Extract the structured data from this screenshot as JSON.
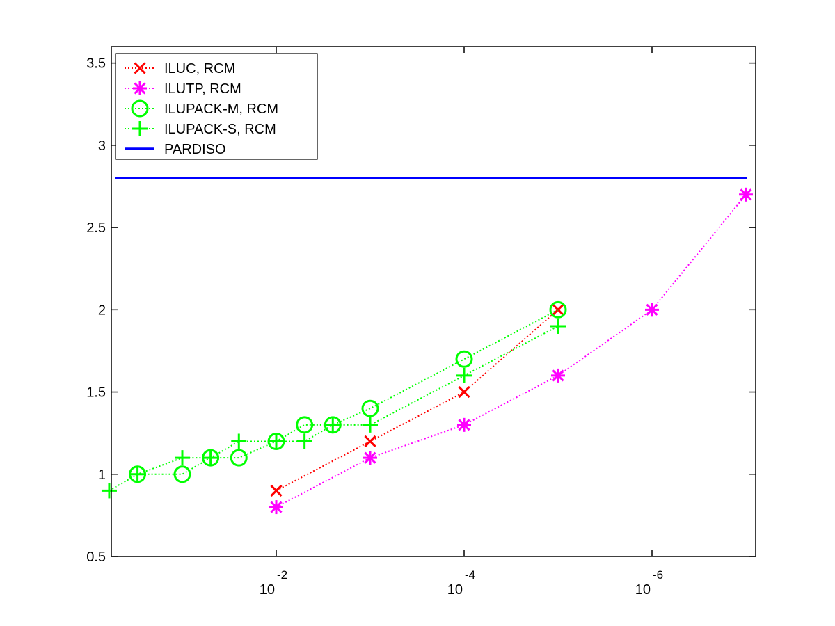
{
  "chart_data": {
    "type": "line",
    "title": "",
    "xlabel": "",
    "ylabel": "",
    "x_scale": "log",
    "x_reversed": true,
    "xlim": [
      0.75,
      1.2e-07
    ],
    "ylim": [
      0.5,
      3.6
    ],
    "grid": false,
    "legend_position": "top-left",
    "y_ticks": [
      {
        "value": 0.5,
        "label": "0.5"
      },
      {
        "value": 1,
        "label": "1"
      },
      {
        "value": 1.5,
        "label": "1.5"
      },
      {
        "value": 2,
        "label": "2"
      },
      {
        "value": 2.5,
        "label": "2.5"
      },
      {
        "value": 3,
        "label": "3"
      },
      {
        "value": 3.5,
        "label": "3.5"
      }
    ],
    "x_ticks": [
      {
        "value": 0.01,
        "base": "10",
        "exponent": "-2"
      },
      {
        "value": 0.0001,
        "base": "10",
        "exponent": "-4"
      },
      {
        "value": 1e-06,
        "base": "10",
        "exponent": "-6"
      }
    ],
    "series": [
      {
        "name": "ILUC, RCM",
        "color": "#ff0000",
        "marker": "x",
        "line": "dotted",
        "points": [
          [
            0.01,
            0.9
          ],
          [
            0.001,
            1.2
          ],
          [
            0.0001,
            1.5
          ],
          [
            1e-05,
            2.0
          ]
        ]
      },
      {
        "name": "ILUTP, RCM",
        "color": "#ff00ff",
        "marker": "asterisk",
        "line": "dotted",
        "points": [
          [
            0.01,
            0.8
          ],
          [
            0.001,
            1.1
          ],
          [
            0.0001,
            1.3
          ],
          [
            1e-05,
            1.6
          ],
          [
            1e-06,
            2.0
          ],
          [
            1e-07,
            2.7
          ]
        ]
      },
      {
        "name": "ILUPACK-M, RCM",
        "color": "#00ff00",
        "marker": "circle",
        "line": "dotted",
        "points": [
          [
            0.3,
            1.0
          ],
          [
            0.1,
            1.0
          ],
          [
            0.05,
            1.1
          ],
          [
            0.025,
            1.1
          ],
          [
            0.01,
            1.2
          ],
          [
            0.005,
            1.3
          ],
          [
            0.0025,
            1.3
          ],
          [
            0.001,
            1.4
          ],
          [
            0.0001,
            1.7
          ],
          [
            1e-05,
            2.0
          ]
        ]
      },
      {
        "name": "ILUPACK-S, RCM",
        "color": "#00ff00",
        "marker": "plus",
        "line": "dotted",
        "points": [
          [
            0.6,
            0.9
          ],
          [
            0.3,
            1.0
          ],
          [
            0.1,
            1.1
          ],
          [
            0.05,
            1.1
          ],
          [
            0.025,
            1.2
          ],
          [
            0.01,
            1.2
          ],
          [
            0.005,
            1.2
          ],
          [
            0.0025,
            1.3
          ],
          [
            0.001,
            1.3
          ],
          [
            0.0001,
            1.6
          ],
          [
            1e-05,
            1.9
          ]
        ]
      },
      {
        "name": "PARDISO",
        "color": "#0000ff",
        "marker": "none",
        "line": "solid",
        "constant_y": 2.8
      }
    ]
  }
}
